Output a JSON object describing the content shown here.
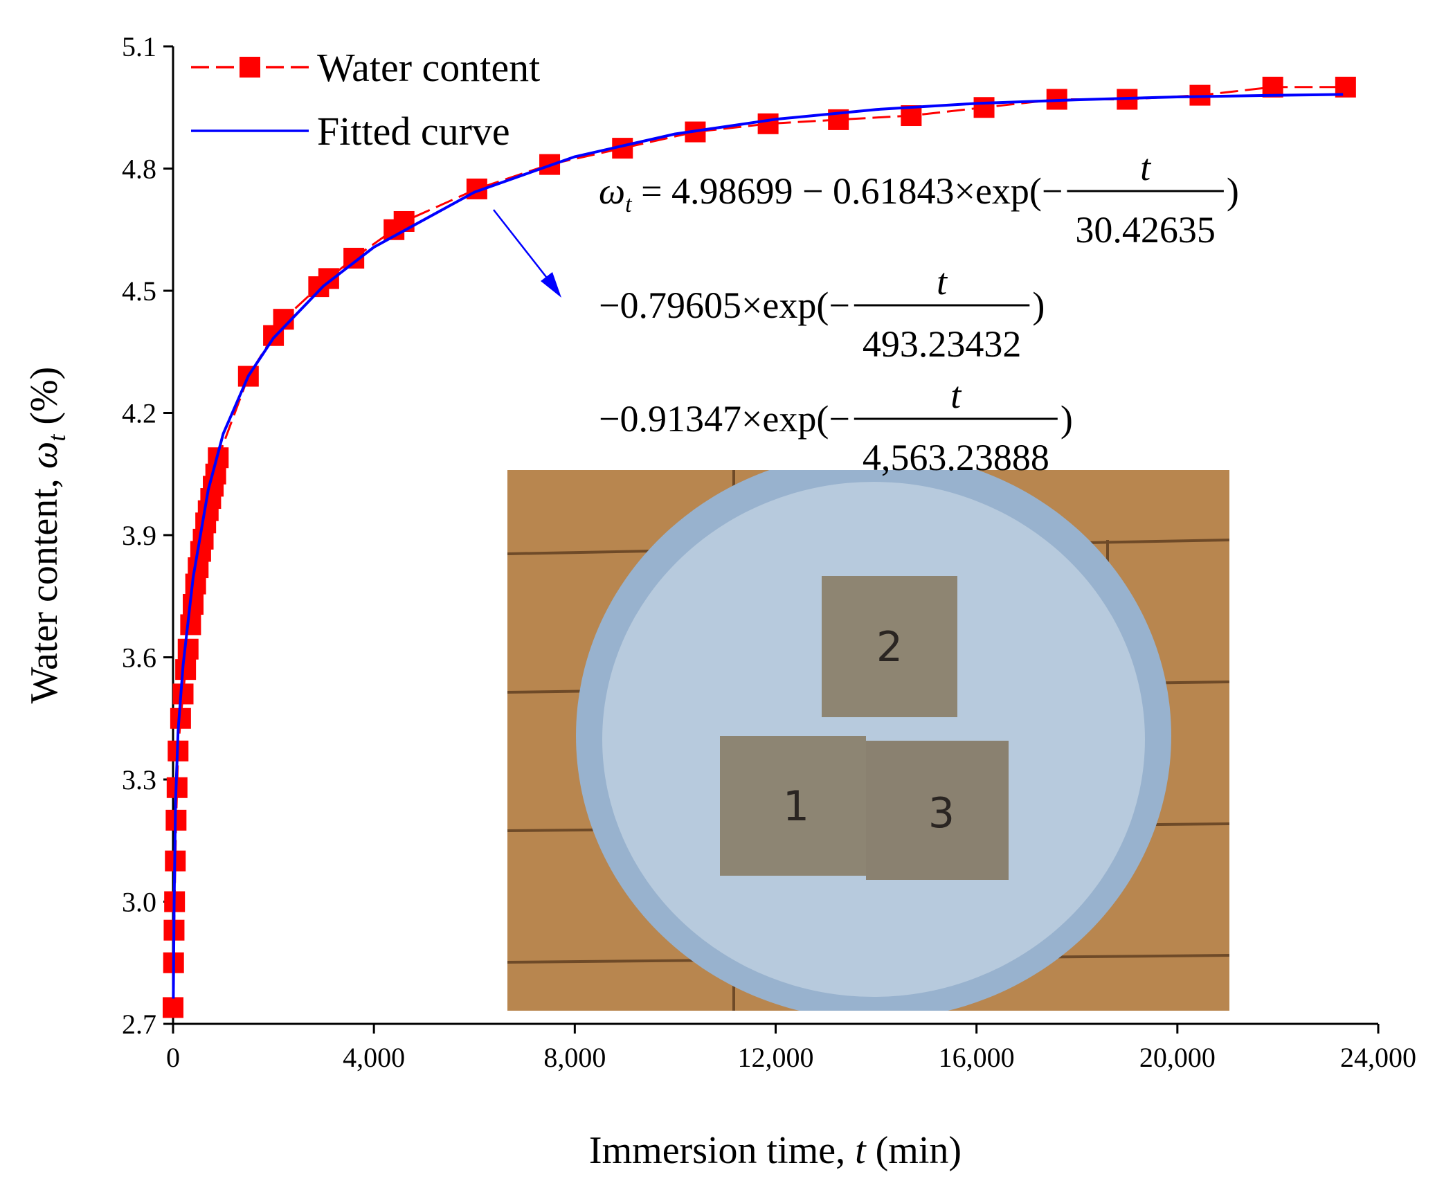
{
  "chart_data": {
    "type": "line",
    "xlabel": [
      "Immersion time, ",
      "t",
      " (min)"
    ],
    "ylabel": [
      "Water content, ",
      "ω",
      "t",
      " (%)"
    ],
    "xlim": [
      0,
      24000
    ],
    "xticks": [
      0,
      {
        "value": 4000,
        "label": "4,000"
      },
      {
        "value": 8000,
        "label": "8,000"
      },
      {
        "value": 12000,
        "label": "12,000"
      },
      {
        "value": 16000,
        "label": "16,000"
      },
      {
        "value": 20000,
        "label": "20,000"
      },
      {
        "value": 24000,
        "label": "24,000"
      }
    ],
    "ylim": [
      2.7,
      5.1
    ],
    "yticks": [
      2.7,
      {
        "value": 3.0,
        "label": "3.0"
      },
      3.3,
      3.6,
      3.9,
      4.2,
      4.5,
      4.8,
      5.1
    ],
    "grid": false,
    "legend": "upper left",
    "series": [
      {
        "name": "Water content",
        "color": "#ff0000",
        "marker": "square",
        "dashed": true,
        "x": [
          0,
          10,
          20,
          30,
          45,
          60,
          80,
          100,
          150,
          200,
          250,
          300,
          350,
          400,
          450,
          500,
          550,
          600,
          650,
          700,
          750,
          800,
          850,
          900,
          1500,
          2000,
          2200,
          2900,
          3100,
          3600,
          4400,
          4600,
          6050,
          7500,
          8950,
          10400,
          11850,
          13250,
          14700,
          16150,
          17600,
          19000,
          20450,
          21900,
          23350
        ],
        "values": [
          2.74,
          2.85,
          2.93,
          3.0,
          3.1,
          3.2,
          3.28,
          3.37,
          3.45,
          3.51,
          3.57,
          3.62,
          3.68,
          3.73,
          3.78,
          3.82,
          3.86,
          3.89,
          3.93,
          3.96,
          3.99,
          4.02,
          4.05,
          4.09,
          4.29,
          4.39,
          4.43,
          4.51,
          4.53,
          4.58,
          4.65,
          4.67,
          4.75,
          4.81,
          4.85,
          4.89,
          4.91,
          4.92,
          4.93,
          4.95,
          4.97,
          4.97,
          4.98,
          5.0,
          5.0
        ]
      },
      {
        "name": "Fitted curve",
        "color": "#0000ff",
        "marker": "none",
        "dashed": false,
        "x": [
          5,
          20,
          50,
          100,
          200,
          400,
          700,
          1000,
          1500,
          2000,
          3000,
          4000,
          6000,
          8000,
          10000,
          12000,
          14000,
          16000,
          18000,
          20000,
          22000,
          23300
        ],
        "values": [
          2.762,
          2.993,
          3.245,
          3.42,
          3.581,
          3.796,
          4.011,
          4.149,
          4.291,
          4.384,
          4.512,
          4.607,
          4.742,
          4.829,
          4.885,
          4.921,
          4.945,
          4.96,
          4.969,
          4.976,
          4.98,
          4.982
        ]
      }
    ],
    "equation": [
      {
        "symbol": "ω",
        "subscript": "t",
        "text": " = 4.98699 − 0.61843×exp(−",
        "numerator": "t",
        "denominator": "30.42635",
        "close": ")"
      },
      {
        "text": "−0.79605×exp(−",
        "numerator": "t",
        "denominator": "493.23432",
        "close": ")"
      },
      {
        "text": "−0.91347×exp(−",
        "numerator": "t",
        "denominator": "4,563.23888",
        "close": ")"
      }
    ],
    "photo_labels": [
      "1",
      "2",
      "3"
    ]
  }
}
